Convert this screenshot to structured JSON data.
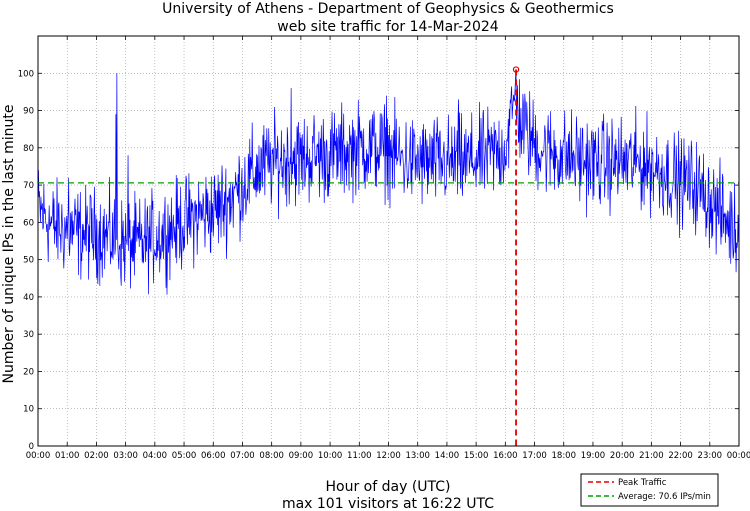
{
  "chart_data": {
    "type": "line",
    "title": "University of Athens - Department of Geophysics & Geothermics",
    "subtitle": "web site traffic for 14-Mar-2024",
    "xlabel": "Hour of day (UTC)",
    "footer": "max 101 visitors at 16:22 UTC",
    "ylabel": "Number of unique IPs in the last minute",
    "xlim": [
      0,
      1440
    ],
    "ylim": [
      0,
      110
    ],
    "x_ticks": [
      "00:00",
      "01:00",
      "02:00",
      "03:00",
      "04:00",
      "05:00",
      "06:00",
      "07:00",
      "08:00",
      "09:00",
      "10:00",
      "11:00",
      "12:00",
      "13:00",
      "14:00",
      "15:00",
      "16:00",
      "17:00",
      "18:00",
      "19:00",
      "20:00",
      "21:00",
      "22:00",
      "23:00",
      "00:00"
    ],
    "y_ticks": [
      "0",
      "10",
      "20",
      "30",
      "40",
      "50",
      "60",
      "70",
      "80",
      "90",
      "100"
    ],
    "grid": true,
    "trend_hourly": {
      "hours": [
        0,
        0.5,
        1,
        1.5,
        2,
        2.5,
        3,
        3.5,
        4,
        4.5,
        5,
        5.5,
        6,
        6.5,
        7,
        7.5,
        8,
        8.5,
        9,
        9.5,
        10,
        10.5,
        11,
        11.5,
        12,
        12.5,
        13,
        13.5,
        14,
        14.5,
        15,
        15.5,
        16,
        16.37,
        16.5,
        17,
        17.5,
        18,
        18.5,
        19,
        19.5,
        20,
        20.5,
        21,
        21.5,
        22,
        22.5,
        23,
        23.5,
        24
      ],
      "values": [
        64,
        59,
        58,
        57,
        57,
        56,
        54,
        54,
        56,
        58,
        60,
        62,
        63,
        66,
        70,
        74,
        76,
        77,
        77,
        78,
        78,
        79,
        80,
        80,
        79,
        77,
        76,
        76,
        76,
        76,
        77,
        78,
        80,
        95,
        87,
        81,
        79,
        78,
        77,
        76,
        76,
        76,
        76,
        75,
        73,
        71,
        70,
        66,
        61,
        57
      ]
    },
    "spikes": [
      {
        "x": 63,
        "y": 72
      },
      {
        "x": 160,
        "y": 89
      },
      {
        "x": 162,
        "y": 100
      },
      {
        "x": 185,
        "y": 78
      },
      {
        "x": 520,
        "y": 96
      },
      {
        "x": 716,
        "y": 94
      },
      {
        "x": 864,
        "y": 93
      },
      {
        "x": 980,
        "y": 96
      }
    ],
    "noise_amplitude": 6,
    "series": [
      {
        "name": "Web site traffic",
        "color": "#0000ff"
      },
      {
        "name": "Peak Traffic",
        "color": "#e00000",
        "x": 982,
        "y": 101
      },
      {
        "name": "Average: 70.6 IPs/min",
        "color": "#00a000",
        "y": 70.6
      }
    ],
    "legend": {
      "placement": "bottom-right",
      "entries": [
        "Peak Traffic",
        "Average: 70.6 IPs/min"
      ]
    }
  }
}
